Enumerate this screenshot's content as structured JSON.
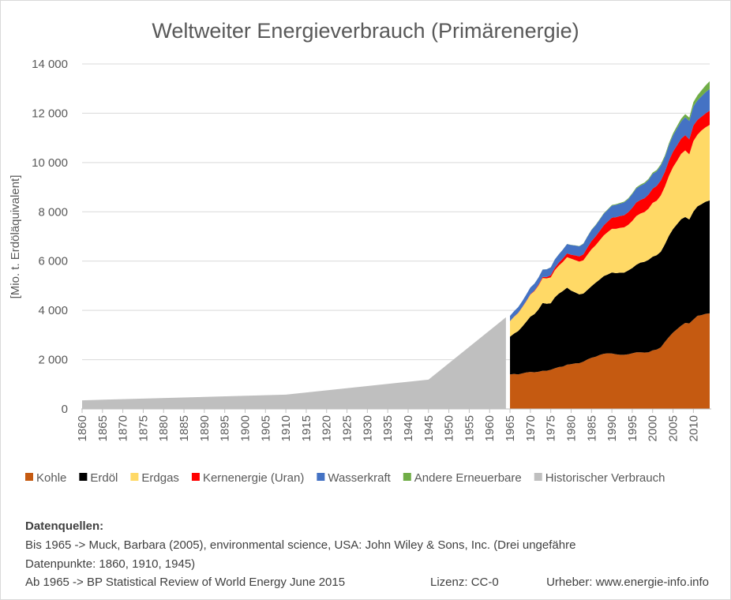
{
  "chart_data": {
    "type": "area",
    "stacked": true,
    "title": "Weltweiter Energieverbrauch (Primärenergie)",
    "y_label": "[Mio. t. Erdöläquivalent]",
    "x": [
      1965,
      1966,
      1967,
      1968,
      1969,
      1970,
      1971,
      1972,
      1973,
      1974,
      1975,
      1976,
      1977,
      1978,
      1979,
      1980,
      1981,
      1982,
      1983,
      1984,
      1985,
      1986,
      1987,
      1988,
      1989,
      1990,
      1991,
      1992,
      1993,
      1994,
      1995,
      1996,
      1997,
      1998,
      1999,
      2000,
      2001,
      2002,
      2003,
      2004,
      2005,
      2006,
      2007,
      2008,
      2009,
      2010,
      2011,
      2012,
      2013,
      2014
    ],
    "series": [
      {
        "name": "Kohle",
        "color": "#c55a11",
        "values": [
          1400,
          1420,
          1400,
          1440,
          1480,
          1500,
          1490,
          1510,
          1550,
          1550,
          1590,
          1650,
          1700,
          1720,
          1800,
          1820,
          1850,
          1860,
          1920,
          2010,
          2080,
          2120,
          2190,
          2240,
          2260,
          2250,
          2220,
          2200,
          2200,
          2220,
          2260,
          2300,
          2300,
          2290,
          2300,
          2380,
          2410,
          2500,
          2720,
          2920,
          3100,
          3240,
          3380,
          3490,
          3470,
          3630,
          3780,
          3810,
          3860,
          3880
        ]
      },
      {
        "name": "Erdöl",
        "color": "#000000",
        "values": [
          1530,
          1640,
          1760,
          1900,
          2060,
          2250,
          2360,
          2530,
          2750,
          2720,
          2700,
          2880,
          2980,
          3070,
          3120,
          2980,
          2880,
          2790,
          2760,
          2820,
          2900,
          3000,
          3060,
          3150,
          3200,
          3290,
          3290,
          3330,
          3330,
          3400,
          3460,
          3550,
          3640,
          3680,
          3750,
          3800,
          3830,
          3880,
          3960,
          4110,
          4200,
          4260,
          4320,
          4300,
          4220,
          4380,
          4440,
          4500,
          4550,
          4580
        ]
      },
      {
        "name": "Erdgas",
        "color": "#ffd966",
        "values": [
          630,
          680,
          730,
          780,
          830,
          890,
          930,
          970,
          1010,
          1030,
          1050,
          1100,
          1140,
          1180,
          1240,
          1300,
          1310,
          1330,
          1350,
          1430,
          1500,
          1520,
          1590,
          1650,
          1720,
          1770,
          1800,
          1820,
          1840,
          1850,
          1910,
          1980,
          1990,
          2020,
          2080,
          2180,
          2210,
          2280,
          2340,
          2430,
          2510,
          2570,
          2650,
          2700,
          2640,
          2860,
          2910,
          2990,
          3020,
          3070
        ]
      },
      {
        "name": "Kernenergie (Uran)",
        "color": "#ff0000",
        "values": [
          6,
          8,
          9,
          12,
          14,
          18,
          25,
          35,
          45,
          55,
          85,
          95,
          120,
          140,
          150,
          160,
          190,
          210,
          240,
          290,
          330,
          360,
          380,
          410,
          430,
          450,
          470,
          480,
          490,
          510,
          530,
          550,
          550,
          560,
          570,
          580,
          600,
          610,
          600,
          620,
          630,
          630,
          620,
          620,
          610,
          630,
          600,
          560,
          563,
          574
        ]
      },
      {
        "name": "Wasserkraft",
        "color": "#4472c4",
        "values": [
          210,
          220,
          230,
          240,
          260,
          270,
          280,
          290,
          300,
          310,
          320,
          340,
          340,
          360,
          380,
          390,
          400,
          410,
          430,
          440,
          450,
          450,
          460,
          470,
          470,
          490,
          500,
          500,
          520,
          530,
          560,
          570,
          580,
          590,
          590,
          600,
          590,
          600,
          600,
          630,
          660,
          690,
          700,
          730,
          740,
          780,
          790,
          830,
          860,
          880
        ]
      },
      {
        "name": "Andere Erneuerbare",
        "color": "#70ad47",
        "values": [
          2,
          2,
          2,
          2,
          2,
          3,
          3,
          3,
          3,
          4,
          4,
          5,
          5,
          6,
          7,
          8,
          9,
          10,
          12,
          14,
          16,
          18,
          20,
          22,
          24,
          26,
          28,
          30,
          32,
          34,
          36,
          40,
          44,
          48,
          50,
          52,
          55,
          58,
          64,
          72,
          82,
          94,
          108,
          124,
          140,
          170,
          205,
          240,
          280,
          316
        ]
      },
      {
        "name": "Historischer Verbrauch",
        "color": "#bfbfbf",
        "x": [
          1860,
          1910,
          1945,
          1964
        ],
        "values": [
          350,
          580,
          1190,
          3720
        ]
      }
    ],
    "xlim": [
      1860,
      2014
    ],
    "xticks": [
      1860,
      1865,
      1870,
      1875,
      1880,
      1885,
      1890,
      1895,
      1900,
      1905,
      1910,
      1915,
      1920,
      1925,
      1930,
      1935,
      1940,
      1945,
      1950,
      1955,
      1960,
      1965,
      1970,
      1975,
      1980,
      1985,
      1990,
      1995,
      2000,
      2005,
      2010
    ],
    "ylim": [
      0,
      14000
    ],
    "yticks": [
      0,
      {
        "value": 2000,
        "label": "2 000"
      },
      {
        "value": 4000,
        "label": "4 000"
      },
      {
        "value": 6000,
        "label": "6 000"
      },
      {
        "value": 8000,
        "label": "8 000"
      },
      {
        "value": 10000,
        "label": "10 000"
      },
      {
        "value": 12000,
        "label": "12 000"
      },
      {
        "value": 14000,
        "label": "14 000"
      }
    ],
    "grid": true,
    "legend": "bottom"
  },
  "footer": {
    "heading": "Datenquellen:",
    "lines": [
      "Bis 1965 -> Muck, Barbara (2005), environmental science, USA: John Wiley & Sons, Inc. (Drei ungefähre",
      "Datenpunkte: 1860, 1910, 1945)",
      "Ab 1965 -> BP Statistical Review of World Energy June 2015"
    ],
    "license": "Lizenz: CC-0",
    "author": "Urheber: www.energie-info.info"
  }
}
